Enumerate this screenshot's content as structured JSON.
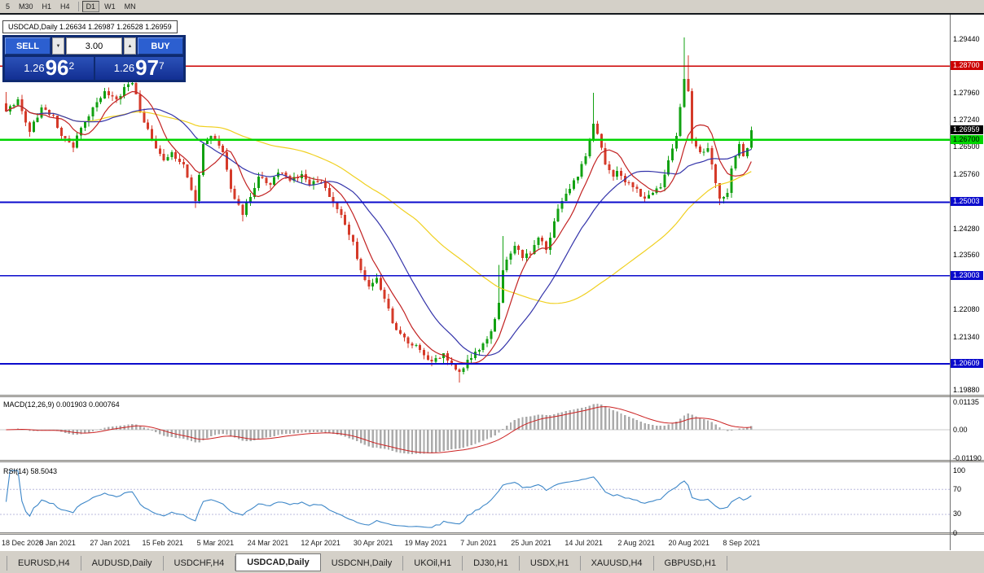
{
  "toolbar": {
    "timeframes": [
      "5",
      "M30",
      "H1",
      "H4",
      "D1",
      "W1",
      "MN"
    ],
    "active_timeframe": "D1"
  },
  "chart": {
    "title": "USDCAD,Daily 1.26634 1.26987 1.26528 1.26959"
  },
  "order_panel": {
    "sell_label": "SELL",
    "buy_label": "BUY",
    "volume": "3.00",
    "spin_down_icon": "▼",
    "spin_up_icon": "▲",
    "sell_price": {
      "big": "1.26",
      "large": "96",
      "sup": "2"
    },
    "buy_price": {
      "big": "1.26",
      "large": "97",
      "sup": "7"
    }
  },
  "chart_data": {
    "type": "candlestick",
    "symbol": "USDCAD",
    "timeframe": "Daily",
    "ohlc_display": {
      "open": "1.26634",
      "high": "1.26987",
      "low": "1.26528",
      "close": "1.26959"
    },
    "colors": {
      "up": "#12a112",
      "down": "#d53a29"
    },
    "candle_count": 190,
    "close_anchors": [
      [
        0,
        1.2747
      ],
      [
        3,
        1.278
      ],
      [
        6,
        1.2692
      ],
      [
        9,
        1.2758
      ],
      [
        12,
        1.2736
      ],
      [
        14,
        1.2681
      ],
      [
        17,
        1.2648
      ],
      [
        19,
        1.2703
      ],
      [
        22,
        1.2758
      ],
      [
        25,
        1.2802
      ],
      [
        28,
        1.278
      ],
      [
        30,
        1.2813
      ],
      [
        32,
        1.2824
      ],
      [
        34,
        1.2747
      ],
      [
        37,
        1.267
      ],
      [
        40,
        1.2614
      ],
      [
        42,
        1.2636
      ],
      [
        45,
        1.2603
      ],
      [
        48,
        1.2504
      ],
      [
        50,
        1.2659
      ],
      [
        52,
        1.2681
      ],
      [
        55,
        1.2636
      ],
      [
        57,
        1.2537
      ],
      [
        60,
        1.2466
      ],
      [
        62,
        1.2515
      ],
      [
        64,
        1.257
      ],
      [
        67,
        1.2548
      ],
      [
        69,
        1.2581
      ],
      [
        72,
        1.2559
      ],
      [
        75,
        1.2577
      ],
      [
        77,
        1.2548
      ],
      [
        80,
        1.2554
      ],
      [
        82,
        1.2515
      ],
      [
        85,
        1.2466
      ],
      [
        88,
        1.2393
      ],
      [
        90,
        1.2316
      ],
      [
        92,
        1.2271
      ],
      [
        94,
        1.2294
      ],
      [
        96,
        1.2238
      ],
      [
        98,
        1.2172
      ],
      [
        100,
        1.2143
      ],
      [
        102,
        1.2116
      ],
      [
        105,
        1.2099
      ],
      [
        107,
        1.2072
      ],
      [
        109,
        1.2077
      ],
      [
        111,
        1.209
      ],
      [
        113,
        1.2061
      ],
      [
        115,
        1.2039
      ],
      [
        117,
        1.2072
      ],
      [
        119,
        1.2094
      ],
      [
        121,
        1.2116
      ],
      [
        123,
        1.2149
      ],
      [
        125,
        1.2227
      ],
      [
        126,
        1.2316
      ],
      [
        129,
        1.2382
      ],
      [
        131,
        1.2349
      ],
      [
        133,
        1.236
      ],
      [
        135,
        1.2404
      ],
      [
        137,
        1.2371
      ],
      [
        139,
        1.2448
      ],
      [
        141,
        1.2504
      ],
      [
        143,
        1.2537
      ],
      [
        145,
        1.257
      ],
      [
        147,
        1.2625
      ],
      [
        149,
        1.2714
      ],
      [
        151,
        1.2648
      ],
      [
        152,
        1.2603
      ],
      [
        154,
        1.257
      ],
      [
        155,
        1.2586
      ],
      [
        157,
        1.2555
      ],
      [
        160,
        1.2537
      ],
      [
        162,
        1.251
      ],
      [
        164,
        1.2526
      ],
      [
        166,
        1.2541
      ],
      [
        168,
        1.2614
      ],
      [
        170,
        1.2681
      ],
      [
        172,
        1.2836
      ],
      [
        173,
        1.2802
      ],
      [
        174,
        1.267
      ],
      [
        176,
        1.2637
      ],
      [
        178,
        1.2648
      ],
      [
        179,
        1.2603
      ],
      [
        181,
        1.251
      ],
      [
        183,
        1.2526
      ],
      [
        184,
        1.2592
      ],
      [
        186,
        1.2659
      ],
      [
        187,
        1.2625
      ],
      [
        188,
        1.2648
      ],
      [
        189,
        1.26959
      ]
    ],
    "wick_overrides": [
      {
        "i": 0,
        "high": 1.28
      },
      {
        "i": 48,
        "low": 1.2485
      },
      {
        "i": 60,
        "low": 1.2448
      },
      {
        "i": 115,
        "low": 1.201
      },
      {
        "i": 125,
        "high": 1.233
      },
      {
        "i": 126,
        "high": 1.2408
      },
      {
        "i": 149,
        "high": 1.2798
      },
      {
        "i": 172,
        "high": 1.2948
      },
      {
        "i": 173,
        "high": 1.29
      },
      {
        "i": 181,
        "low": 1.2493
      }
    ],
    "moving_averages": [
      {
        "period": 8,
        "color": "#c22222"
      },
      {
        "period": 21,
        "color": "#3434aa"
      },
      {
        "period": 55,
        "color": "#f0d020"
      }
    ],
    "levels": [
      {
        "value": 1.287,
        "label": "1.28700",
        "color": "#cc0000",
        "text_color": "#ffffff",
        "width": 1.4
      },
      {
        "value": 1.267,
        "label": "1.26700",
        "color": "#00d400",
        "text_color": "#000000",
        "width": 2.2
      },
      {
        "value": 1.25003,
        "label": "1.25003",
        "color": "#0b0bcc",
        "text_color": "#ffffff",
        "width": 1.6
      },
      {
        "value": 1.23003,
        "label": "1.23003",
        "color": "#0b0bcc",
        "text_color": "#ffffff",
        "width": 1.6
      },
      {
        "value": 1.20609,
        "label": "1.20609",
        "color": "#0b0bcc",
        "text_color": "#ffffff",
        "width": 1.6
      }
    ],
    "current_price": 1.26959,
    "current_price_label": "1.26959",
    "y_axis_ticks": [
      "1.29440",
      "1.27960",
      "1.27240",
      "1.26500",
      "1.25760",
      "1.24280",
      "1.23560",
      "1.22080",
      "1.21340",
      "1.19880"
    ],
    "x_axis_labels": [
      "18 Dec 2020",
      "8 Jan 2021",
      "27 Jan 2021",
      "15 Feb 2021",
      "5 Mar 2021",
      "24 Mar 2021",
      "12 Apr 2021",
      "30 Apr 2021",
      "19 May 2021",
      "7 Jun 2021",
      "25 Jun 2021",
      "14 Jul 2021",
      "2 Aug 2021",
      "20 Aug 2021",
      "8 Sep 2021"
    ],
    "macd": {
      "label": "MACD(12,26,9) 0.001903 0.000764",
      "fast": 12,
      "slow": 26,
      "signal": 9,
      "values_display": [
        "0.001903",
        "0.000764"
      ],
      "axis_ticks": [
        "0.01135",
        "0.00",
        "-0.01190"
      ]
    },
    "rsi": {
      "label": "RSI(14) 58.5043",
      "period": 14,
      "value": 58.5043,
      "levels": [
        70,
        30
      ],
      "axis_ticks": [
        "100",
        "70",
        "30",
        "0"
      ]
    }
  },
  "tabs": [
    "EURUSD,H4",
    "AUDUSD,Daily",
    "USDCHF,H4",
    "USDCAD,Daily",
    "USDCNH,Daily",
    "UKOil,H1",
    "DJ30,H1",
    "USDX,H1",
    "XAUUSD,H4",
    "GBPUSD,H1"
  ],
  "active_tab": "USDCAD,Daily"
}
